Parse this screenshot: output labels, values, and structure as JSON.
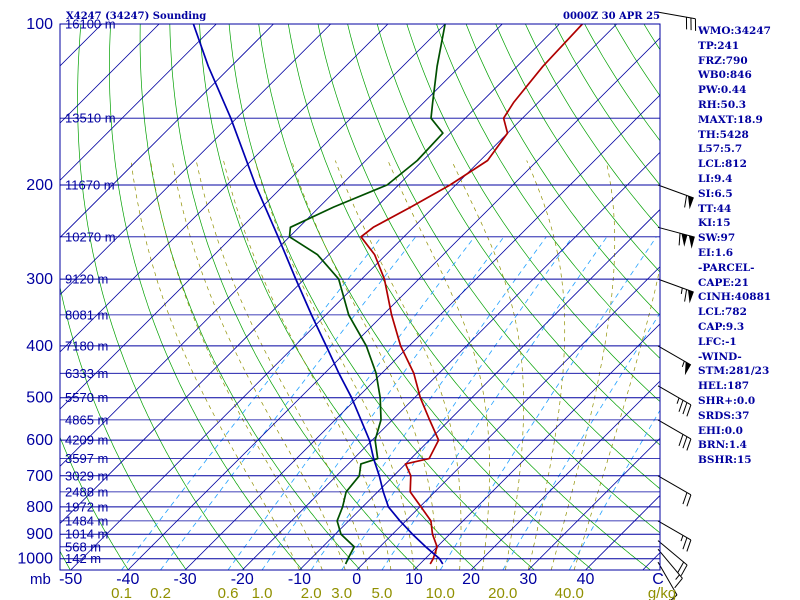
{
  "header": {
    "station_title": "X4247 (34247) Sounding",
    "valid_time": "0000Z 30 APR 25"
  },
  "indices": [
    "WMO:34247",
    "TP:241",
    "FRZ:790",
    "WB0:846",
    "PW:0.44",
    "RH:50.3",
    "MAXT:18.9",
    "TH:5428",
    "L57:5.7",
    "LCL:812",
    "LI:9.4",
    "SI:6.5",
    "TT:44",
    "KI:15",
    "SW:97",
    "EI:1.6",
    "-PARCEL-",
    "CAPE:21",
    "CINH:40881",
    "LCL:782",
    "CAP:9.3",
    "LFC:-1",
    "-WIND-",
    "STM:281/23",
    "HEL:187",
    "SHR+:0.0",
    "SRDS:37",
    "EHI:0.0",
    "BRN:1.4",
    "BSHR:15"
  ],
  "colors": {
    "frame": "#0000a0",
    "isotherm": "#0000a0",
    "dry_adiabat": "#00a000",
    "moist_adiabat": "#909000",
    "mixing_ratio": "#20a0ff",
    "temperature": "#b00000",
    "dewpoint": "#005000",
    "parcel": "#0000b0",
    "wind_barb": "#000000",
    "mixing_ratio_labels": "#909000"
  },
  "chart_data": {
    "type": "skew-t",
    "xaxis": {
      "label": "",
      "unit": "C",
      "ticks": [
        -50,
        -40,
        -30,
        -20,
        -10,
        0,
        10,
        20,
        30,
        40
      ],
      "range": [
        -50,
        50
      ]
    },
    "yaxis": {
      "label": "mb",
      "ticks": [
        100,
        200,
        300,
        400,
        500,
        600,
        700,
        800,
        900,
        1000
      ],
      "scale": "log",
      "range": [
        100,
        1050
      ]
    },
    "height_labels": [
      {
        "p": 100,
        "label": "16100 m"
      },
      {
        "p": 150,
        "label": "13510 m"
      },
      {
        "p": 200,
        "label": "11670 m"
      },
      {
        "p": 250,
        "label": "10270 m"
      },
      {
        "p": 300,
        "label": "9120 m"
      },
      {
        "p": 350,
        "label": "8081 m"
      },
      {
        "p": 400,
        "label": "7180 m"
      },
      {
        "p": 450,
        "label": "6333 m"
      },
      {
        "p": 500,
        "label": "5570 m"
      },
      {
        "p": 550,
        "label": "4865 m"
      },
      {
        "p": 600,
        "label": "4209 m"
      },
      {
        "p": 650,
        "label": "3597 m"
      },
      {
        "p": 700,
        "label": "3029 m"
      },
      {
        "p": 750,
        "label": "2488 m"
      },
      {
        "p": 800,
        "label": "1972 m"
      },
      {
        "p": 850,
        "label": "1484 m"
      },
      {
        "p": 900,
        "label": "1014 m"
      },
      {
        "p": 950,
        "label": "568 m"
      },
      {
        "p": 1000,
        "label": "142 m"
      }
    ],
    "mixing_ratio_labels": [
      "0.1",
      "0.2",
      "0.6",
      "1.0",
      "2.0",
      "3.0",
      "5.0",
      "10.0",
      "20.0",
      "40.0"
    ],
    "mixing_ratio_unit": "g/kg",
    "series": [
      {
        "name": "temperature",
        "points": [
          {
            "p": 1023,
            "t": 11.8
          },
          {
            "p": 1000,
            "t": 11.4
          },
          {
            "p": 950,
            "t": 10.0
          },
          {
            "p": 900,
            "t": 7.0
          },
          {
            "p": 850,
            "t": 4.4
          },
          {
            "p": 800,
            "t": 0.2
          },
          {
            "p": 750,
            "t": -4.3
          },
          {
            "p": 700,
            "t": -7.0
          },
          {
            "p": 665,
            "t": -10.0
          },
          {
            "p": 650,
            "t": -6.8
          },
          {
            "p": 600,
            "t": -8.4
          },
          {
            "p": 550,
            "t": -13.5
          },
          {
            "p": 500,
            "t": -19.0
          },
          {
            "p": 450,
            "t": -24.4
          },
          {
            "p": 400,
            "t": -31.5
          },
          {
            "p": 350,
            "t": -38.5
          },
          {
            "p": 300,
            "t": -46.0
          },
          {
            "p": 270,
            "t": -52.0
          },
          {
            "p": 250,
            "t": -57.5
          },
          {
            "p": 240,
            "t": -57.0
          },
          {
            "p": 220,
            "t": -54.0
          },
          {
            "p": 200,
            "t": -51.0
          },
          {
            "p": 180,
            "t": -48.7
          },
          {
            "p": 160,
            "t": -50.0
          },
          {
            "p": 150,
            "t": -53.3
          },
          {
            "p": 140,
            "t": -54.3
          },
          {
            "p": 120,
            "t": -55.5
          },
          {
            "p": 100,
            "t": -56.0
          }
        ]
      },
      {
        "name": "dewpoint",
        "points": [
          {
            "p": 1023,
            "t": -3.0
          },
          {
            "p": 1000,
            "t": -3.5
          },
          {
            "p": 950,
            "t": -4.5
          },
          {
            "p": 900,
            "t": -9.0
          },
          {
            "p": 850,
            "t": -12.0
          },
          {
            "p": 800,
            "t": -13.5
          },
          {
            "p": 750,
            "t": -15.5
          },
          {
            "p": 700,
            "t": -16.0
          },
          {
            "p": 665,
            "t": -17.8
          },
          {
            "p": 650,
            "t": -15.8
          },
          {
            "p": 600,
            "t": -19.5
          },
          {
            "p": 550,
            "t": -22.0
          },
          {
            "p": 500,
            "t": -26.0
          },
          {
            "p": 450,
            "t": -31.0
          },
          {
            "p": 400,
            "t": -37.5
          },
          {
            "p": 350,
            "t": -46.0
          },
          {
            "p": 300,
            "t": -54.0
          },
          {
            "p": 270,
            "t": -62.0
          },
          {
            "p": 250,
            "t": -70.0
          },
          {
            "p": 240,
            "t": -71.5
          },
          {
            "p": 220,
            "t": -67.5
          },
          {
            "p": 200,
            "t": -62.0
          },
          {
            "p": 180,
            "t": -61.0
          },
          {
            "p": 160,
            "t": -61.3
          },
          {
            "p": 150,
            "t": -66.0
          },
          {
            "p": 140,
            "t": -68.5
          },
          {
            "p": 120,
            "t": -74.0
          },
          {
            "p": 100,
            "t": -80.0
          }
        ]
      },
      {
        "name": "parcel",
        "points": [
          {
            "p": 1023,
            "t": 14.0
          },
          {
            "p": 1000,
            "t": 12.5
          },
          {
            "p": 950,
            "t": 8.0
          },
          {
            "p": 900,
            "t": 3.5
          },
          {
            "p": 850,
            "t": -1.0
          },
          {
            "p": 800,
            "t": -5.5
          },
          {
            "p": 750,
            "t": -9.0
          },
          {
            "p": 700,
            "t": -12.5
          },
          {
            "p": 650,
            "t": -16.5
          },
          {
            "p": 600,
            "t": -20.5
          },
          {
            "p": 550,
            "t": -25.5
          },
          {
            "p": 500,
            "t": -31.0
          },
          {
            "p": 450,
            "t": -37.5
          },
          {
            "p": 400,
            "t": -44.5
          },
          {
            "p": 350,
            "t": -52.5
          },
          {
            "p": 300,
            "t": -61.5
          },
          {
            "p": 250,
            "t": -72.0
          },
          {
            "p": 200,
            "t": -85.0
          },
          {
            "p": 150,
            "t": -101.0
          },
          {
            "p": 120,
            "t": -114.0
          },
          {
            "p": 100,
            "t": -124.0
          }
        ]
      }
    ],
    "wind_barbs": [
      {
        "p": 95,
        "dir": 280,
        "spd": 30
      },
      {
        "p": 200,
        "dir": 290,
        "spd": 60
      },
      {
        "p": 240,
        "dir": 285,
        "spd": 110
      },
      {
        "p": 300,
        "dir": 290,
        "spd": 65
      },
      {
        "p": 400,
        "dir": 300,
        "spd": 55
      },
      {
        "p": 475,
        "dir": 300,
        "spd": 35
      },
      {
        "p": 550,
        "dir": 300,
        "spd": 30
      },
      {
        "p": 700,
        "dir": 300,
        "spd": 20
      },
      {
        "p": 850,
        "dir": 300,
        "spd": 25
      },
      {
        "p": 925,
        "dir": 310,
        "spd": 20
      },
      {
        "p": 960,
        "dir": 320,
        "spd": 15
      },
      {
        "p": 1015,
        "dir": 330,
        "spd": 10
      }
    ]
  }
}
